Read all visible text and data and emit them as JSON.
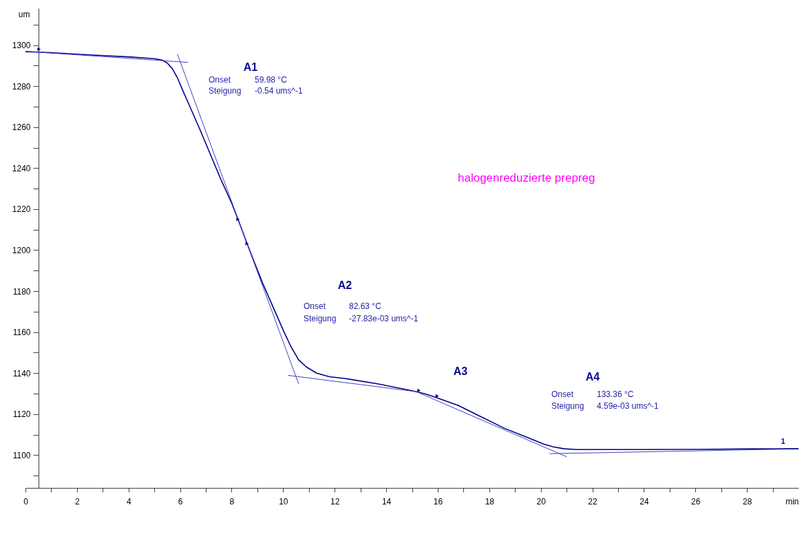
{
  "chart_data": {
    "type": "line",
    "xlabel": "min",
    "ylabel": "um",
    "xlim": [
      0,
      30
    ],
    "ylim": [
      1084,
      1318
    ],
    "xticks": [
      0,
      {
        "value": 1,
        "label": null
      },
      2,
      {
        "value": 3,
        "label": null
      },
      4,
      {
        "value": 5,
        "label": null
      },
      6,
      {
        "value": 7,
        "label": null
      },
      8,
      {
        "value": 9,
        "label": null
      },
      10,
      {
        "value": 11,
        "label": null
      },
      12,
      {
        "value": 13,
        "label": null
      },
      14,
      {
        "value": 15,
        "label": null
      },
      16,
      {
        "value": 17,
        "label": null
      },
      18,
      {
        "value": 19,
        "label": null
      },
      20,
      {
        "value": 21,
        "label": null
      },
      22,
      {
        "value": 23,
        "label": null
      },
      24,
      {
        "value": 25,
        "label": null
      },
      26,
      {
        "value": 27,
        "label": null
      },
      28,
      {
        "value": 29,
        "label": null
      }
    ],
    "yticks": [
      {
        "value": 1090,
        "label": null
      },
      1100,
      {
        "value": 1110,
        "label": null
      },
      1120,
      {
        "value": 1130,
        "label": null
      },
      1140,
      {
        "value": 1150,
        "label": null
      },
      1160,
      {
        "value": 1170,
        "label": null
      },
      1180,
      {
        "value": 1190,
        "label": null
      },
      1200,
      {
        "value": 1210,
        "label": null
      },
      1220,
      {
        "value": 1230,
        "label": null
      },
      1240,
      {
        "value": 1250,
        "label": null
      },
      1260,
      {
        "value": 1270,
        "label": null
      },
      1280,
      {
        "value": 1290,
        "label": null
      },
      1300,
      {
        "value": 1310,
        "label": null
      }
    ],
    "series": [
      {
        "color": "#00008b",
        "x": [
          0,
          0.5,
          1,
          2,
          3,
          4,
          5,
          5.3,
          5.5,
          5.7,
          5.9,
          6.1,
          6.4,
          6.8,
          7.2,
          7.6,
          8.0,
          8.25,
          8.6,
          8.9,
          9.2,
          9.6,
          10.0,
          10.3,
          10.6,
          10.9,
          11.3,
          11.8,
          12.4,
          13.7,
          15.0,
          15.5,
          16.0,
          16.8,
          17.7,
          18.6,
          19.5,
          20.1,
          20.5,
          20.9,
          21.4,
          22,
          24,
          26,
          28,
          30
        ],
        "values": [
          1296.8,
          1296.6,
          1296.3,
          1295.6,
          1294.9,
          1294.3,
          1293.4,
          1292.7,
          1291.3,
          1288.5,
          1284.0,
          1278.0,
          1269.5,
          1258.0,
          1246.0,
          1234.0,
          1223.0,
          1215.0,
          1203.2,
          1193.5,
          1184.0,
          1172.5,
          1161.0,
          1153.0,
          1146.5,
          1143.0,
          1140.0,
          1138.2,
          1137.4,
          1134.7,
          1131.4,
          1129.9,
          1127.8,
          1124.2,
          1118.6,
          1113.0,
          1108.5,
          1105.4,
          1104.0,
          1103.1,
          1102.7,
          1102.7,
          1102.7,
          1102.8,
          1103.0,
          1103.1
        ]
      },
      {
        "color": "#4040c0",
        "x": [
          0,
          6.3
        ],
        "values": [
          1297.0,
          1291.6
        ]
      },
      {
        "color": "#4040c0",
        "x": [
          5.9,
          10.6
        ],
        "values": [
          1295.5,
          1134.8
        ]
      },
      {
        "color": "#4040c0",
        "x": [
          10.2,
          15.2
        ],
        "values": [
          1138.9,
          1130.9
        ]
      },
      {
        "color": "#4040c0",
        "x": [
          15.3,
          21.0
        ],
        "values": [
          1130.2,
          1099.2
        ]
      },
      {
        "color": "#4040c0",
        "x": [
          20.35,
          29.4
        ],
        "values": [
          1100.7,
          1102.9
        ]
      },
      {
        "type": "scatter",
        "marker": "triangle",
        "color": "#00008b",
        "x": [
          0.53,
          8.25,
          8.6,
          15.27,
          15.98
        ],
        "values": [
          1298.0,
          1215.0,
          1203.2,
          1131.5,
          1128.8
        ]
      }
    ],
    "annotations": [
      "A1",
      "Onset",
      "59.98 °C",
      "Steigung",
      "-0.54 ums^-1",
      "A2",
      "Onset",
      "82.63 °C",
      "Steigung",
      "-27.83e-03 ums^-1",
      "A3",
      "A4",
      "Onset",
      "133.36 °C",
      "Steigung",
      "4.59e-03 ums^-1",
      "halogenreduzierte prepreg",
      {
        "text": "1",
        "x": 29.4,
        "y": 1104
      }
    ]
  }
}
